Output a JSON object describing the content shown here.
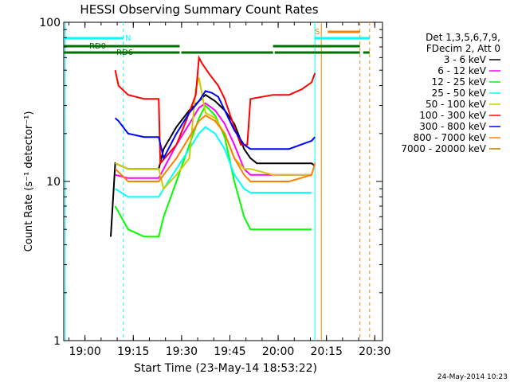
{
  "chart_data": {
    "type": "line",
    "title": "HESSI Observing Summary Count Rates",
    "xlabel": "Start Time (23-May-14 18:53:22)",
    "ylabel": "Count Rate (s⁻¹ detector⁻¹)",
    "yscale": "log",
    "ylim": [
      1,
      100
    ],
    "xlim_minutes": [
      0,
      99
    ],
    "x_ticks": [
      "19:00",
      "19:15",
      "19:30",
      "19:45",
      "20:00",
      "20:15",
      "20:30"
    ],
    "y_ticks": [
      "1",
      "10",
      "100"
    ],
    "legend_header": [
      "Det 1,3,5,6,7,9,",
      "FDecim 2, Att 0"
    ],
    "legend_position": "right",
    "date_stamp": "24-May-2014 10:23",
    "series": [
      {
        "name": "3 - 6 keV",
        "color": "#000000",
        "points": [
          [
            14.6,
            4.5
          ],
          [
            16,
            13
          ],
          [
            20,
            12
          ],
          [
            25,
            12
          ],
          [
            29.5,
            12
          ],
          [
            31,
            16
          ],
          [
            35,
            22
          ],
          [
            39,
            28
          ],
          [
            42,
            32
          ],
          [
            44,
            35
          ],
          [
            47,
            32
          ],
          [
            50,
            28
          ],
          [
            53,
            23
          ],
          [
            56,
            16
          ],
          [
            58,
            14
          ],
          [
            60,
            13
          ],
          [
            65,
            13
          ],
          [
            70,
            13
          ],
          [
            72,
            13
          ],
          [
            77,
            13
          ],
          [
            78,
            12.5
          ]
        ]
      },
      {
        "name": "6 - 12 keV",
        "color": "#ff00ff",
        "points": [
          [
            16,
            11
          ],
          [
            20,
            10.5
          ],
          [
            25,
            10.5
          ],
          [
            29.5,
            10.5
          ],
          [
            31,
            12
          ],
          [
            35,
            17
          ],
          [
            39,
            23
          ],
          [
            42,
            29
          ],
          [
            44,
            31
          ],
          [
            47,
            28
          ],
          [
            50,
            23
          ],
          [
            53,
            17
          ],
          [
            56,
            12
          ],
          [
            58,
            11
          ],
          [
            65,
            11
          ],
          [
            70,
            11
          ],
          [
            77,
            11
          ]
        ]
      },
      {
        "name": "12 - 25 keV",
        "color": "#00ff00",
        "points": [
          [
            16,
            7
          ],
          [
            20,
            5
          ],
          [
            25,
            4.5
          ],
          [
            29.5,
            4.5
          ],
          [
            31,
            6
          ],
          [
            35,
            10
          ],
          [
            39,
            17
          ],
          [
            42,
            25
          ],
          [
            44,
            30
          ],
          [
            47,
            26
          ],
          [
            50,
            19
          ],
          [
            53,
            10
          ],
          [
            56,
            6
          ],
          [
            58,
            5
          ],
          [
            65,
            5
          ],
          [
            70,
            5
          ],
          [
            77,
            5
          ]
        ]
      },
      {
        "name": "25 - 50 keV",
        "color": "#00ffff",
        "points": [
          [
            16,
            9
          ],
          [
            20,
            8
          ],
          [
            25,
            8
          ],
          [
            29.5,
            8
          ],
          [
            31,
            9
          ],
          [
            35,
            12
          ],
          [
            39,
            16
          ],
          [
            42,
            20
          ],
          [
            44,
            22
          ],
          [
            47,
            20
          ],
          [
            50,
            16
          ],
          [
            53,
            11
          ],
          [
            56,
            9
          ],
          [
            58,
            8.5
          ],
          [
            65,
            8.5
          ],
          [
            70,
            8.5
          ],
          [
            77,
            8.5
          ]
        ]
      },
      {
        "name": "50 - 100 keV",
        "color": "#cccc00",
        "points": [
          [
            16,
            13
          ],
          [
            20,
            12
          ],
          [
            25,
            12
          ],
          [
            29.5,
            12
          ],
          [
            31,
            9
          ],
          [
            35,
            11
          ],
          [
            39,
            14
          ],
          [
            41,
            38
          ],
          [
            42,
            45
          ],
          [
            43,
            35
          ],
          [
            44,
            27
          ],
          [
            47,
            25
          ],
          [
            50,
            20
          ],
          [
            53,
            14
          ],
          [
            56,
            12
          ],
          [
            58,
            12
          ],
          [
            65,
            11
          ],
          [
            70,
            11
          ],
          [
            77,
            11
          ]
        ]
      },
      {
        "name": "100 - 300 keV",
        "color": "#ff0000",
        "points": [
          [
            16,
            50
          ],
          [
            17,
            40
          ],
          [
            20,
            35
          ],
          [
            25,
            33
          ],
          [
            29.5,
            33
          ],
          [
            30,
            13
          ],
          [
            35,
            17
          ],
          [
            38,
            24
          ],
          [
            41,
            35
          ],
          [
            42,
            60
          ],
          [
            43,
            55
          ],
          [
            45,
            48
          ],
          [
            48,
            40
          ],
          [
            50,
            33
          ],
          [
            52,
            25
          ],
          [
            55,
            17
          ],
          [
            57,
            17
          ],
          [
            58,
            33
          ],
          [
            65,
            35
          ],
          [
            70,
            35
          ],
          [
            74,
            38
          ],
          [
            77,
            42
          ],
          [
            78,
            48
          ]
        ]
      },
      {
        "name": "300 - 800 keV",
        "color": "#0000ff",
        "points": [
          [
            16,
            25
          ],
          [
            17,
            24
          ],
          [
            20,
            20
          ],
          [
            25,
            19
          ],
          [
            29.5,
            19
          ],
          [
            31,
            14
          ],
          [
            35,
            20
          ],
          [
            39,
            27
          ],
          [
            42,
            32
          ],
          [
            44,
            37
          ],
          [
            46,
            36
          ],
          [
            48,
            34
          ],
          [
            50,
            28
          ],
          [
            53,
            21
          ],
          [
            56,
            17
          ],
          [
            58,
            16
          ],
          [
            65,
            16
          ],
          [
            70,
            16
          ],
          [
            77,
            18
          ],
          [
            78,
            19
          ]
        ]
      },
      {
        "name": "800 - 7000 keV",
        "color": "#ff8000",
        "points": [
          [
            16,
            12
          ],
          [
            20,
            10
          ],
          [
            25,
            10
          ],
          [
            29.5,
            10
          ],
          [
            31,
            11
          ],
          [
            35,
            14
          ],
          [
            39,
            19
          ],
          [
            42,
            24
          ],
          [
            44,
            26
          ],
          [
            47,
            24
          ],
          [
            50,
            20
          ],
          [
            53,
            14
          ],
          [
            56,
            11
          ],
          [
            58,
            10
          ],
          [
            65,
            10
          ],
          [
            70,
            10
          ],
          [
            77,
            11
          ],
          [
            78,
            13
          ]
        ]
      },
      {
        "name": "7000 - 20000 keV",
        "color": "#c08000",
        "points": []
      }
    ],
    "annotations": [
      {
        "text": "RD0",
        "color": "#006400"
      },
      {
        "text": "RD6",
        "color": "#006400"
      },
      {
        "text": "N",
        "color": "#00ffff"
      },
      {
        "text": "S",
        "color": "#ff8000"
      }
    ]
  }
}
